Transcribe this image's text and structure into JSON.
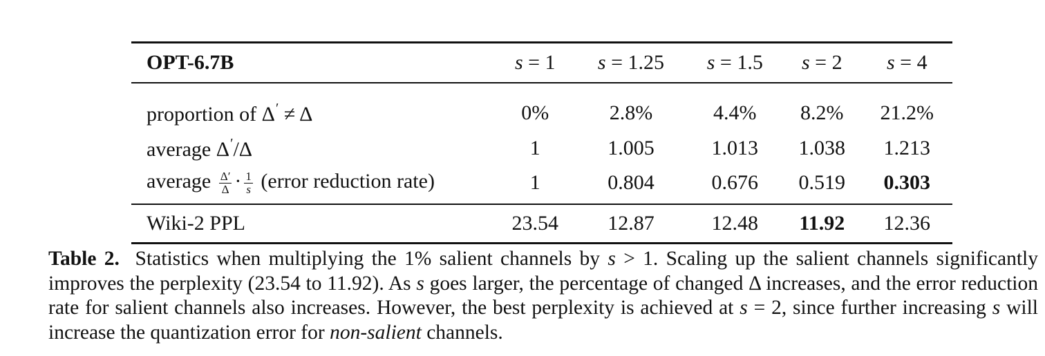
{
  "table": {
    "model_label": "OPT-6.7B",
    "s_values": [
      "1",
      "1.25",
      "1.5",
      "2",
      "4"
    ],
    "s_var": "s",
    "eq": "=",
    "rows": [
      {
        "id": "proportion",
        "prefix": "proportion of ",
        "values": [
          "0%",
          "2.8%",
          "4.4%",
          "8.2%",
          "21.2%"
        ]
      },
      {
        "id": "average-ratio",
        "prefix": "average ",
        "values": [
          "1",
          "1.005",
          "1.013",
          "1.038",
          "1.213"
        ]
      },
      {
        "id": "error-reduction",
        "prefix": "average ",
        "suffix": " (error reduction rate)",
        "values": [
          "1",
          "0.804",
          "0.676",
          "0.519",
          "0.303"
        ],
        "bold_index": 4
      }
    ],
    "footer": {
      "label": "Wiki-2 PPL",
      "values": [
        "23.54",
        "12.87",
        "12.48",
        "11.92",
        "12.36"
      ],
      "bold_index": 3
    },
    "symbols": {
      "delta": "Δ",
      "prime": "′",
      "neq": "≠",
      "slash": "/",
      "cdot": "·",
      "one": "1"
    }
  },
  "caption": {
    "label": "Table 2.",
    "t1": "Statistics when multiplying the 1% salient channels by ",
    "t2": " > 1.  Scaling up the salient channels significantly improves the perplexity (23.54 to 11.92). As ",
    "t3": " goes larger, the percentage of changed Δ increases, and the error reduction rate for salient channels also increases. However, the best perplexity is achieved at ",
    "t4": " = 2, since further increasing ",
    "t5": " will increase the quantization error for ",
    "t6": "non-salient",
    "t7": " channels."
  }
}
